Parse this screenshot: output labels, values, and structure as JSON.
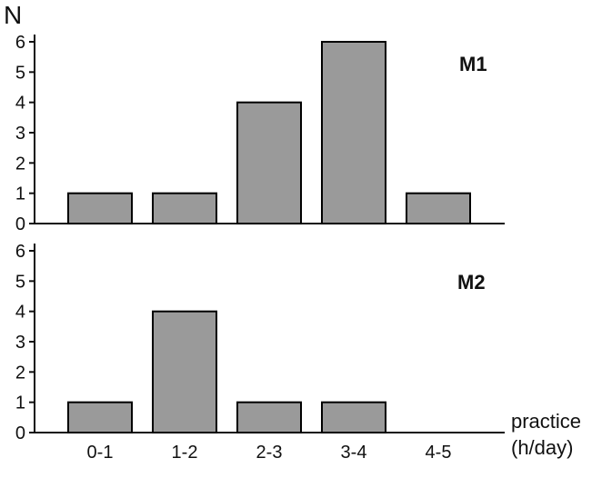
{
  "chart_data": [
    {
      "type": "bar",
      "title": "M1",
      "categories": [
        "0-1",
        "1-2",
        "2-3",
        "3-4",
        "4-5"
      ],
      "values": [
        1,
        1,
        4,
        6,
        1
      ],
      "ylabel": "N",
      "xlabel": "",
      "ylim": [
        0,
        6
      ],
      "yticks": [
        "0",
        "1",
        "2",
        "3",
        "4",
        "5",
        "6"
      ],
      "bar_color": "#9a9a9a"
    },
    {
      "type": "bar",
      "title": "M2",
      "categories": [
        "0-1",
        "1-2",
        "2-3",
        "3-4",
        "4-5"
      ],
      "values": [
        1,
        4,
        1,
        1,
        0
      ],
      "ylabel": "",
      "xlabel": "practice (h/day)",
      "xlabel_lines": [
        "practice",
        "(h/day)"
      ],
      "ylim": [
        0,
        6
      ],
      "yticks": [
        "0",
        "1",
        "2",
        "3",
        "4",
        "5",
        "6"
      ],
      "bar_color": "#9a9a9a"
    }
  ]
}
